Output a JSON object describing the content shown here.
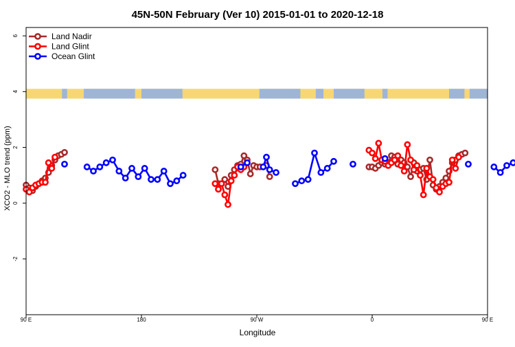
{
  "chart_data": {
    "type": "line",
    "title": "45N-50N February (Ver 10)   2015-01-01 to 2020-12-18",
    "xlabel": "Longitude",
    "ylabel": "XCO2 - MLO trend (ppm)",
    "xlim": [
      90,
      450
    ],
    "ylim": [
      -4,
      6.3
    ],
    "xticks": [
      {
        "value": 90,
        "label": "90 E"
      },
      {
        "value": 180,
        "label": "180"
      },
      {
        "value": 270,
        "label": "90 W"
      },
      {
        "value": 360,
        "label": "0"
      },
      {
        "value": 450,
        "label": "90 E"
      },
      {
        "value": 540,
        "label": "180"
      }
    ],
    "yticks": [
      {
        "value": -2,
        "label": "-2"
      },
      {
        "value": 0,
        "label": "0"
      },
      {
        "value": 2,
        "label": "2"
      },
      {
        "value": 4,
        "label": "4"
      },
      {
        "value": 6,
        "label": "6"
      }
    ],
    "legend_position": "top-left",
    "landmask_band": {
      "y_bottom": 3.75,
      "y_top": 4.1,
      "land_color": "#f7d774",
      "ocean_color": "#9fb5d6"
    },
    "series": [
      {
        "name": "Land Nadir",
        "color": "#a52a2a",
        "segments": [
          [
            [
              90,
              0.65
            ],
            [
              92.5,
              0.55
            ],
            [
              95,
              0.45
            ],
            [
              97.5,
              0.6
            ],
            [
              100,
              0.7
            ],
            [
              102.5,
              0.8
            ],
            [
              105,
              0.9
            ],
            [
              107.5,
              1.1
            ],
            [
              110,
              1.35
            ],
            [
              112.5,
              1.55
            ],
            [
              115,
              1.7
            ],
            [
              117.5,
              1.75
            ],
            [
              120,
              1.82
            ]
          ],
          [
            [
              237.5,
              1.2
            ],
            [
              240,
              0.7
            ],
            [
              242.5,
              0.7
            ],
            [
              245,
              0.85
            ],
            [
              247.5,
              0.6
            ],
            [
              250,
              1.0
            ],
            [
              252.5,
              1.2
            ],
            [
              255,
              1.35
            ],
            [
              257.5,
              1.4
            ],
            [
              260,
              1.7
            ],
            [
              262.5,
              1.55
            ],
            [
              265,
              1.05
            ],
            [
              267.5,
              1.35
            ],
            [
              270,
              1.3
            ],
            [
              272.5,
              1.3
            ],
            [
              277.5,
              1.35
            ],
            [
              280,
              0.95
            ]
          ],
          [
            [
              357.5,
              1.3
            ],
            [
              360,
              1.3
            ],
            [
              362.5,
              1.25
            ],
            [
              365,
              1.35
            ],
            [
              367.5,
              1.45
            ],
            [
              370,
              1.4
            ],
            [
              372.5,
              1.45
            ],
            [
              375,
              1.7
            ],
            [
              377.5,
              1.65
            ],
            [
              380,
              1.4
            ],
            [
              382.5,
              1.55
            ],
            [
              385,
              1.45
            ],
            [
              387.5,
              1.3
            ],
            [
              390,
              0.95
            ],
            [
              392.5,
              1.45
            ],
            [
              395,
              1.15
            ],
            [
              397.5,
              1.2
            ],
            [
              400,
              1.25
            ],
            [
              402.5,
              0.85
            ],
            [
              405,
              1.55
            ],
            [
              407.5,
              0.65
            ],
            [
              410,
              0.5
            ],
            [
              412.5,
              0.6
            ],
            [
              415,
              0.75
            ],
            [
              417.5,
              0.9
            ],
            [
              420,
              1.15
            ],
            [
              422.5,
              1.45
            ],
            [
              425,
              1.55
            ],
            [
              427.5,
              1.7
            ],
            [
              430,
              1.75
            ],
            [
              432.5,
              1.8
            ]
          ]
        ]
      },
      {
        "name": "Land Glint",
        "color": "#ff0000",
        "segments": [
          [
            [
              90,
              0.5
            ],
            [
              92.5,
              0.4
            ],
            [
              95,
              0.55
            ],
            [
              97.5,
              0.65
            ],
            [
              100,
              0.7
            ],
            [
              102.5,
              0.75
            ],
            [
              105,
              0.75
            ],
            [
              107.5,
              1.45
            ],
            [
              110,
              1.25
            ],
            [
              112.5,
              1.65
            ]
          ],
          [
            [
              237.5,
              0.7
            ],
            [
              240,
              0.5
            ],
            [
              242.5,
              0.7
            ],
            [
              245,
              0.3
            ],
            [
              247.5,
              -0.05
            ],
            [
              250,
              0.8
            ],
            [
              252.5,
              1.0
            ],
            [
              255,
              1.3
            ],
            [
              257.5,
              1.2
            ],
            [
              260,
              1.3
            ]
          ],
          [
            [
              357.5,
              1.9
            ],
            [
              360,
              1.8
            ],
            [
              362.5,
              1.6
            ],
            [
              365,
              2.15
            ],
            [
              367.5,
              1.55
            ],
            [
              370,
              1.5
            ],
            [
              372.5,
              1.35
            ],
            [
              375,
              1.45
            ],
            [
              377.5,
              1.55
            ],
            [
              380,
              1.7
            ],
            [
              382.5,
              1.35
            ],
            [
              385,
              1.15
            ],
            [
              387.5,
              2.1
            ],
            [
              390,
              1.55
            ],
            [
              392.5,
              1.2
            ],
            [
              395,
              1.35
            ],
            [
              397.5,
              1.0
            ],
            [
              400,
              0.3
            ],
            [
              402.5,
              1.25
            ],
            [
              405,
              0.95
            ],
            [
              407.5,
              0.85
            ],
            [
              410,
              0.55
            ],
            [
              412.5,
              0.4
            ],
            [
              415,
              0.6
            ],
            [
              417.5,
              0.7
            ],
            [
              420,
              0.75
            ],
            [
              422.5,
              1.55
            ],
            [
              425,
              1.25
            ],
            [
              427.5,
              1.65
            ]
          ]
        ]
      },
      {
        "name": "Ocean Glint",
        "color": "#0000ff",
        "segments": [
          [
            [
              120,
              1.4
            ]
          ],
          [
            [
              137.5,
              1.3
            ],
            [
              142.5,
              1.15
            ],
            [
              147.5,
              1.3
            ],
            [
              152.5,
              1.45
            ],
            [
              157.5,
              1.55
            ],
            [
              162.5,
              1.15
            ],
            [
              167.5,
              0.9
            ],
            [
              172.5,
              1.25
            ],
            [
              177.5,
              0.95
            ],
            [
              182.5,
              1.25
            ],
            [
              187.5,
              0.85
            ],
            [
              192.5,
              0.85
            ],
            [
              197.5,
              1.15
            ],
            [
              202.5,
              0.7
            ],
            [
              207.5,
              0.8
            ],
            [
              212.5,
              1.0
            ]
          ],
          [
            [
              257.5,
              1.3
            ],
            [
              262.5,
              1.45
            ]
          ],
          [
            [
              275,
              1.3
            ],
            [
              277.5,
              1.65
            ],
            [
              280,
              1.2
            ],
            [
              285,
              1.1
            ]
          ],
          [
            [
              300,
              0.7
            ],
            [
              305,
              0.8
            ],
            [
              310,
              0.85
            ],
            [
              315,
              1.8
            ],
            [
              320,
              1.1
            ],
            [
              325,
              1.25
            ],
            [
              330,
              1.5
            ]
          ],
          [
            [
              345,
              1.4
            ]
          ],
          [
            [
              370,
              1.6
            ]
          ],
          [
            [
              435,
              1.4
            ]
          ],
          [
            [
              455,
              1.3
            ],
            [
              460,
              1.1
            ],
            [
              465,
              1.35
            ],
            [
              470,
              1.45
            ],
            [
              475,
              1.5
            ]
          ]
        ]
      }
    ]
  }
}
